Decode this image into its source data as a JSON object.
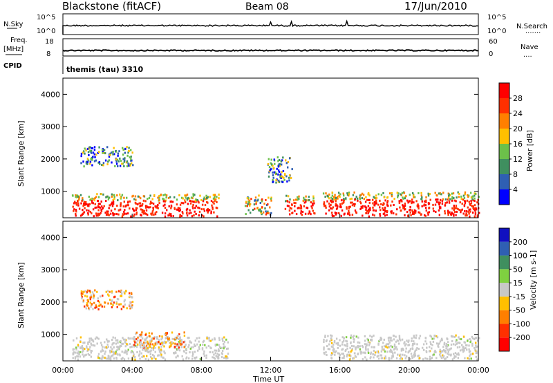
{
  "header": {
    "station": "Blackstone (fitACF)",
    "beam": "Beam 08",
    "date": "17/Jun/2010"
  },
  "noise_panel": {
    "left_label": "N.Sky",
    "right_label": "N.Search",
    "tick_top": "10^5",
    "tick_bottom": "10^0",
    "legend_dots": "......."
  },
  "freq_panel": {
    "left_label_1": "Freq.",
    "left_label_2": "[MHz]",
    "right_label": "Nave",
    "left_ticks": [
      "18",
      "8"
    ],
    "right_ticks": [
      "60",
      "0"
    ],
    "legend_dots": "...."
  },
  "cpid": {
    "label": "CPID",
    "program": "themis (tau) 3310"
  },
  "x_axis": {
    "label": "Time UT",
    "ticks": [
      "00:00",
      "04:00",
      "08:00",
      "12:00",
      "16:00",
      "20:00",
      "00:00"
    ]
  },
  "chart_data": [
    {
      "type": "heatmap",
      "panel": "power",
      "ylabel": "Slant Range [km]",
      "yticks": [
        "1000",
        "2000",
        "3000",
        "4000"
      ],
      "ylim": [
        180,
        4500
      ],
      "xlim_hours": [
        0,
        24
      ],
      "colorbar_label": "Power [dB]",
      "colorbar_ticks": [
        "4",
        "8",
        "12",
        "16",
        "20",
        "24",
        "28"
      ],
      "colors": [
        "#0000ff",
        "#2f5fb3",
        "#3f8f5f",
        "#6cc04a",
        "#ffbf00",
        "#ff7f00",
        "#ff3000",
        "#ff0000"
      ],
      "regions": [
        {
          "t": [
            0.5,
            9.0
          ],
          "r": [
            250,
            950
          ],
          "level": "high"
        },
        {
          "t": [
            10.5,
            12.0
          ],
          "r": [
            300,
            900
          ],
          "level": "mid"
        },
        {
          "t": [
            12.8,
            14.5
          ],
          "r": [
            300,
            900
          ],
          "level": "high"
        },
        {
          "t": [
            15.0,
            24.0
          ],
          "r": [
            250,
            1000
          ],
          "level": "high"
        },
        {
          "t": [
            1.0,
            4.0
          ],
          "r": [
            1800,
            2400
          ],
          "level": "low"
        },
        {
          "t": [
            11.8,
            13.2
          ],
          "r": [
            1300,
            2100
          ],
          "level": "low"
        }
      ]
    },
    {
      "type": "heatmap",
      "panel": "velocity",
      "ylabel": "Slant Range [km]",
      "yticks": [
        "1000",
        "2000",
        "3000",
        "4000"
      ],
      "ylim": [
        180,
        4500
      ],
      "xlim_hours": [
        0,
        24
      ],
      "colorbar_label": "Velocity [m s-1]",
      "colorbar_ticks": [
        "200",
        "100",
        "50",
        "15",
        "-15",
        "-50",
        "-100",
        "-200"
      ],
      "colors": [
        "#1010c0",
        "#2f5fb3",
        "#3f8f5f",
        "#7fd040",
        "#c8c8c8",
        "#ffbf00",
        "#ff7f00",
        "#ff3000",
        "#ff0000"
      ],
      "regions": [
        {
          "t": [
            0.5,
            9.5
          ],
          "r": [
            250,
            950
          ],
          "level": "ground"
        },
        {
          "t": [
            1.0,
            4.0
          ],
          "r": [
            1800,
            2400
          ],
          "level": "negative"
        },
        {
          "t": [
            4.0,
            7.0
          ],
          "r": [
            600,
            1100
          ],
          "level": "negative"
        },
        {
          "t": [
            15.0,
            24.0
          ],
          "r": [
            250,
            1000
          ],
          "level": "ground"
        }
      ]
    }
  ]
}
